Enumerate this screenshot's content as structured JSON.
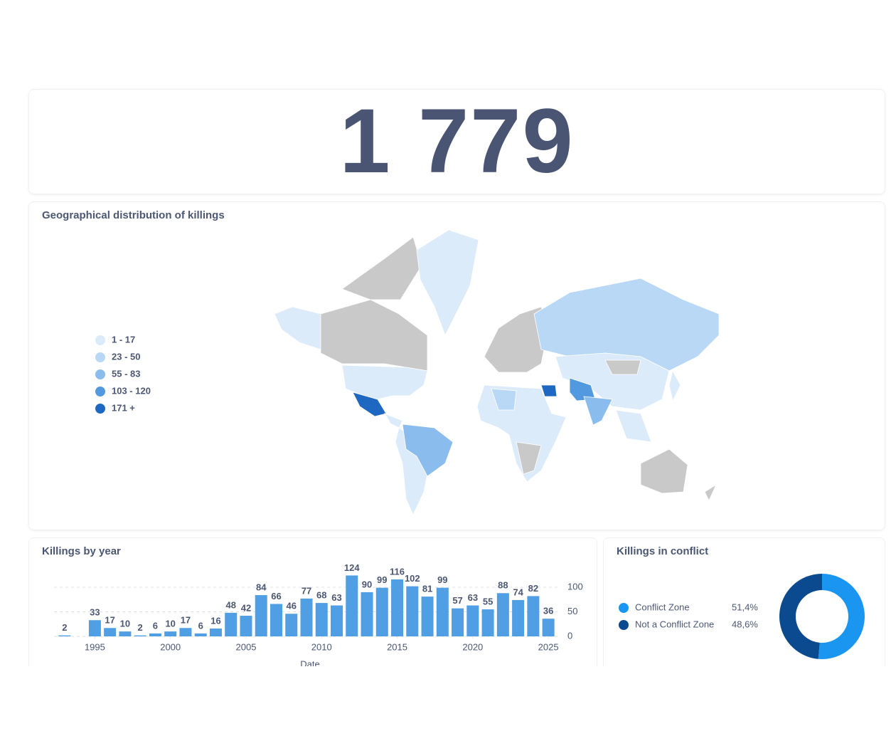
{
  "dashboard": {
    "total": "1 779"
  },
  "map": {
    "title": "Geographical distribution of killings",
    "legend": [
      {
        "label": "1 - 17",
        "color": "#dcebfa"
      },
      {
        "label": "23 - 50",
        "color": "#b8d8f5"
      },
      {
        "label": "55 - 83",
        "color": "#8abcee"
      },
      {
        "label": "103 - 120",
        "color": "#5399e0"
      },
      {
        "label": "171 +",
        "color": "#1f68c1"
      }
    ]
  },
  "chart_data": [
    {
      "type": "bar",
      "title": "Killings by year",
      "x_label": "Date",
      "x": [
        1993,
        1995,
        1996,
        1997,
        1998,
        1999,
        2000,
        2001,
        2002,
        2003,
        2004,
        2005,
        2006,
        2007,
        2008,
        2009,
        2010,
        2011,
        2012,
        2013,
        2014,
        2015,
        2016,
        2017,
        2018,
        2019,
        2020,
        2021,
        2022,
        2023,
        2024,
        2025
      ],
      "values": [
        2,
        33,
        17,
        10,
        2,
        6,
        10,
        17,
        6,
        16,
        48,
        42,
        84,
        66,
        46,
        77,
        68,
        63,
        124,
        90,
        99,
        116,
        102,
        81,
        99,
        57,
        63,
        55,
        88,
        74,
        82,
        36
      ],
      "color": "#509ee3",
      "xlim": [
        1992.3,
        2025.7
      ],
      "xticks": [
        1995,
        2000,
        2005,
        2010,
        2015,
        2020,
        2025
      ],
      "ylim": [
        0,
        140
      ],
      "yticks": [
        0,
        50,
        100
      ],
      "grid": true
    },
    {
      "type": "pie",
      "title": "Killings in conflict",
      "categories": [
        "Conflict Zone",
        "Not a Conflict Zone"
      ],
      "values": [
        51.4,
        48.6
      ],
      "value_labels": [
        "51,4%",
        "48,6%"
      ],
      "colors": [
        "#1a96f0",
        "#0b4a8f"
      ],
      "donut": true
    }
  ]
}
